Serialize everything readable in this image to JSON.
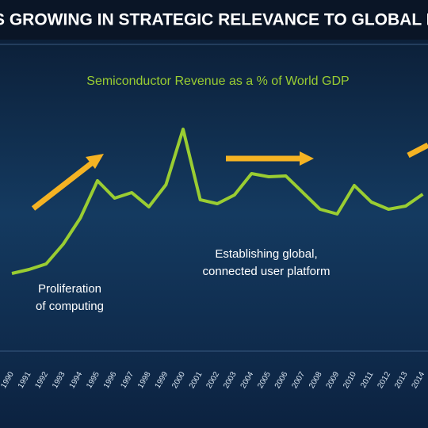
{
  "chart_data": {
    "type": "line",
    "heading": "S GROWING IN STRATEGIC RELEVANCE TO GLOBAL E",
    "title": "Semiconductor Revenue as a % of World GDP",
    "categories": [
      "1990",
      "1991",
      "1992",
      "1993",
      "1994",
      "1995",
      "1996",
      "1997",
      "1998",
      "1999",
      "2000",
      "2001",
      "2002",
      "2003",
      "2004",
      "2005",
      "2006",
      "2007",
      "2008",
      "2009",
      "2010",
      "2011",
      "2012",
      "2013",
      "2014"
    ],
    "values": [
      95,
      100,
      107,
      132,
      165,
      212,
      190,
      197,
      179,
      207,
      277,
      188,
      183,
      194,
      221,
      217,
      218,
      197,
      176,
      170,
      206,
      185,
      176,
      180,
      195
    ],
    "color": "#9acd32",
    "ylim": [
      0,
      300
    ],
    "annotations": [
      {
        "lines": [
          "Proliferation",
          "of computing"
        ]
      },
      {
        "lines": [
          "Establishing global,",
          "connected user platform"
        ]
      }
    ]
  }
}
